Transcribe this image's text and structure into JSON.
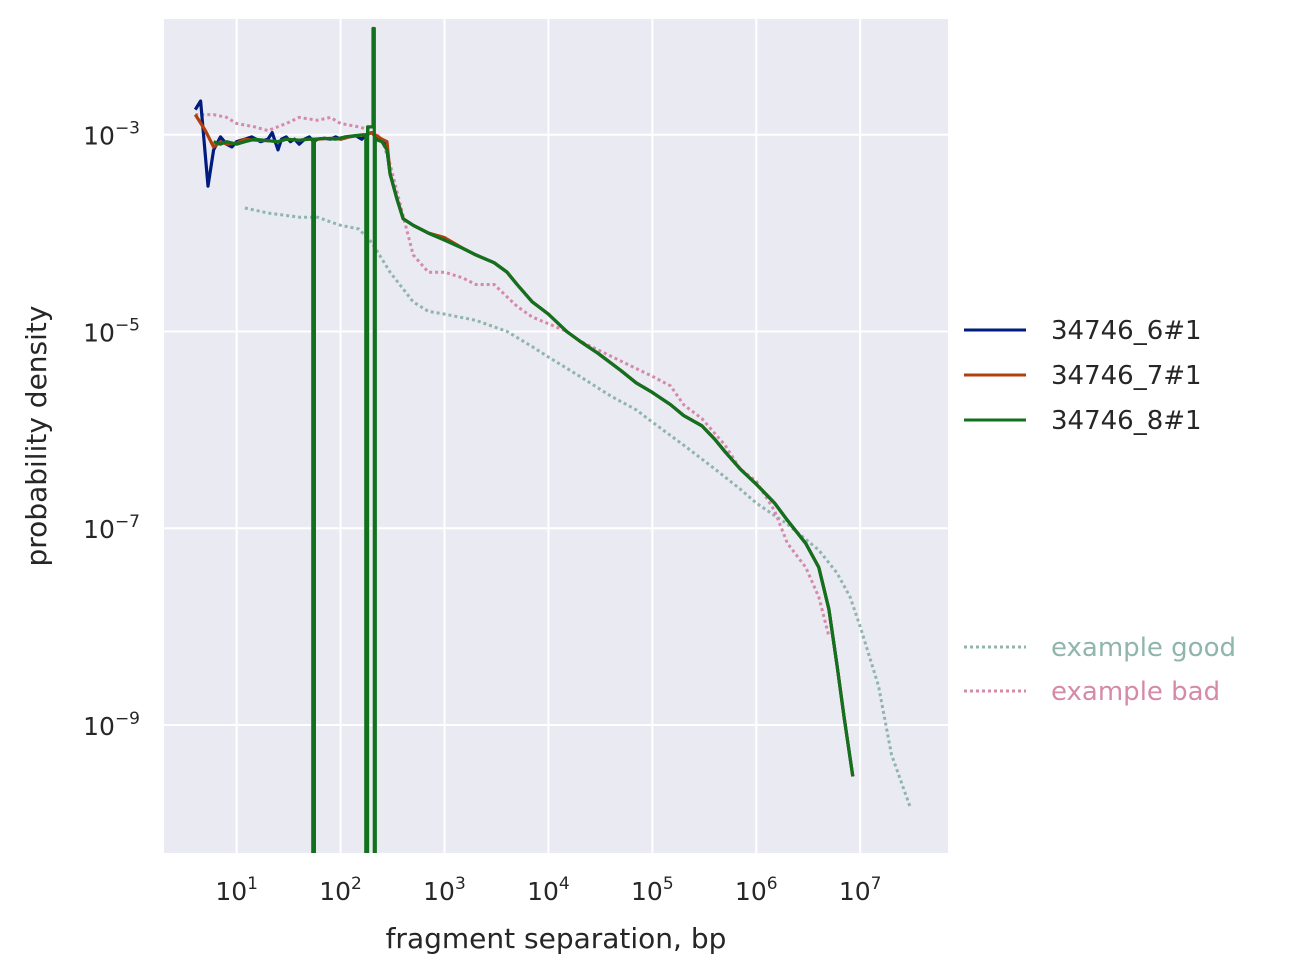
{
  "chart_data": {
    "type": "line",
    "xscale": "log",
    "yscale": "log",
    "xlabel": "fragment separation, bp",
    "ylabel": "probability density",
    "xlim": [
      2,
      70000000
    ],
    "ylim": [
      5e-11,
      0.015
    ],
    "xticks": [
      {
        "base": "10",
        "exp": "1",
        "value": 10
      },
      {
        "base": "10",
        "exp": "2",
        "value": 100
      },
      {
        "base": "10",
        "exp": "3",
        "value": 1000
      },
      {
        "base": "10",
        "exp": "4",
        "value": 10000
      },
      {
        "base": "10",
        "exp": "5",
        "value": 100000
      },
      {
        "base": "10",
        "exp": "6",
        "value": 1000000
      },
      {
        "base": "10",
        "exp": "7",
        "value": 10000000
      }
    ],
    "yticks": [
      {
        "base": "10",
        "exp": "−3",
        "value": 0.001
      },
      {
        "base": "10",
        "exp": "−5",
        "value": 1e-05
      },
      {
        "base": "10",
        "exp": "−7",
        "value": 1e-07
      },
      {
        "base": "10",
        "exp": "−9",
        "value": 1e-09
      }
    ],
    "grid": true,
    "background": "#eaeaf2",
    "legend_placement": "right",
    "series": [
      {
        "name": "34746_6#1",
        "color": "#001c7f",
        "style": "solid",
        "points": [
          [
            4,
            0.0018
          ],
          [
            4.5,
            0.0022
          ],
          [
            5.3,
            0.0003
          ],
          [
            6,
            0.0007
          ],
          [
            7,
            0.00095
          ],
          [
            8,
            0.0008
          ],
          [
            9,
            0.00075
          ],
          [
            10,
            0.00085
          ],
          [
            12,
            0.0009
          ],
          [
            14,
            0.00095
          ],
          [
            17,
            0.00085
          ],
          [
            20,
            0.0009
          ],
          [
            22,
            0.00105
          ],
          [
            25,
            0.0007
          ],
          [
            27,
            0.0009
          ],
          [
            30,
            0.00095
          ],
          [
            33,
            0.00085
          ],
          [
            36,
            0.0009
          ],
          [
            40,
            0.0008
          ],
          [
            45,
            0.0009
          ],
          [
            50,
            0.00095
          ],
          [
            55,
            0.00085
          ],
          [
            60,
            0.0009
          ],
          [
            70,
            0.00092
          ],
          [
            80,
            0.0009
          ],
          [
            90,
            0.00095
          ],
          [
            100,
            0.0009
          ],
          [
            120,
            0.00095
          ],
          [
            140,
            0.00098
          ],
          [
            160,
            0.0009
          ],
          [
            180,
            0.00102
          ],
          [
            200,
            0.00105
          ],
          [
            230,
            0.0009
          ],
          [
            260,
            0.00085
          ],
          [
            280,
            0.0007
          ],
          [
            300,
            0.0004
          ],
          [
            350,
            0.00022
          ],
          [
            400,
            0.00014
          ],
          [
            500,
            0.00012
          ],
          [
            700,
            0.0001
          ],
          [
            1000,
            8.5e-05
          ],
          [
            1500,
            7e-05
          ],
          [
            2000,
            6e-05
          ],
          [
            3000,
            5e-05
          ],
          [
            4000,
            4e-05
          ],
          [
            5000,
            3e-05
          ],
          [
            7000,
            2e-05
          ],
          [
            10000,
            1.5e-05
          ],
          [
            15000,
            1e-05
          ],
          [
            20000,
            8e-06
          ],
          [
            30000,
            6e-06
          ],
          [
            50000,
            4e-06
          ],
          [
            70000,
            3e-06
          ],
          [
            100000,
            2.4e-06
          ],
          [
            150000,
            1.8e-06
          ],
          [
            200000,
            1.4e-06
          ],
          [
            300000,
            1.1e-06
          ],
          [
            400000,
            8e-07
          ],
          [
            500000,
            6e-07
          ],
          [
            700000,
            4e-07
          ],
          [
            1000000,
            2.8e-07
          ],
          [
            1500000,
            1.8e-07
          ],
          [
            2000000,
            1.2e-07
          ],
          [
            3000000,
            7e-08
          ],
          [
            4000000,
            4e-08
          ],
          [
            5000000,
            1.5e-08
          ],
          [
            6000000,
            4e-09
          ],
          [
            7000000,
            1.2e-09
          ],
          [
            8500000,
            3e-10
          ]
        ]
      },
      {
        "name": "34746_7#1",
        "color": "#b1400d",
        "style": "solid",
        "points": [
          [
            4,
            0.0016
          ],
          [
            5,
            0.0011
          ],
          [
            6,
            0.00075
          ],
          [
            7,
            0.00085
          ],
          [
            8,
            0.0008
          ],
          [
            10,
            0.00082
          ],
          [
            12,
            0.0009
          ],
          [
            15,
            0.00088
          ],
          [
            20,
            0.00087
          ],
          [
            25,
            0.00085
          ],
          [
            30,
            0.0009
          ],
          [
            40,
            0.00088
          ],
          [
            50,
            0.0009
          ],
          [
            60,
            0.0009
          ],
          [
            80,
            0.00092
          ],
          [
            100,
            0.0009
          ],
          [
            120,
            0.00095
          ],
          [
            150,
            0.00098
          ],
          [
            180,
            0.001
          ],
          [
            200,
            0.00105
          ],
          [
            250,
            0.0009
          ],
          [
            280,
            0.00085
          ],
          [
            300,
            0.0004
          ],
          [
            350,
            0.00022
          ],
          [
            400,
            0.00014
          ],
          [
            500,
            0.00012
          ],
          [
            700,
            0.0001
          ],
          [
            1000,
            9e-05
          ],
          [
            1500,
            7e-05
          ],
          [
            2000,
            6e-05
          ],
          [
            3000,
            5e-05
          ],
          [
            4000,
            4e-05
          ],
          [
            5000,
            3e-05
          ],
          [
            7000,
            2e-05
          ],
          [
            10000,
            1.5e-05
          ],
          [
            15000,
            1e-05
          ],
          [
            20000,
            8e-06
          ],
          [
            30000,
            6e-06
          ],
          [
            50000,
            4e-06
          ],
          [
            70000,
            3e-06
          ],
          [
            100000,
            2.4e-06
          ],
          [
            150000,
            1.8e-06
          ],
          [
            200000,
            1.4e-06
          ],
          [
            300000,
            1.1e-06
          ],
          [
            400000,
            8e-07
          ],
          [
            500000,
            6e-07
          ],
          [
            700000,
            4e-07
          ],
          [
            1000000,
            2.8e-07
          ],
          [
            1500000,
            1.8e-07
          ],
          [
            2000000,
            1.2e-07
          ],
          [
            3000000,
            7e-08
          ],
          [
            4000000,
            4e-08
          ],
          [
            5000000,
            1.5e-08
          ],
          [
            6000000,
            4e-09
          ],
          [
            7000000,
            1.2e-09
          ],
          [
            8500000,
            3e-10
          ]
        ]
      },
      {
        "name": "34746_8#1",
        "color": "#12711c",
        "style": "solid",
        "points": [
          [
            6,
            0.00085
          ],
          [
            7,
            0.0008
          ],
          [
            8,
            0.00085
          ],
          [
            10,
            0.0008
          ],
          [
            12,
            0.00085
          ],
          [
            15,
            0.0009
          ],
          [
            20,
            0.00087
          ],
          [
            25,
            0.00085
          ],
          [
            30,
            0.0009
          ],
          [
            40,
            0.00088
          ],
          [
            50,
            0.0009
          ],
          [
            54,
            0.0009
          ],
          [
            54,
            4e-11
          ],
          [
            56,
            4e-11
          ],
          [
            56,
            0.0009
          ],
          [
            70,
            0.00092
          ],
          [
            90,
            0.0009
          ],
          [
            110,
            0.00095
          ],
          [
            140,
            0.00098
          ],
          [
            165,
            0.001
          ],
          [
            175,
            0.001
          ],
          [
            175,
            4e-11
          ],
          [
            182,
            4e-11
          ],
          [
            182,
            0.0012
          ],
          [
            205,
            0.0012
          ],
          [
            205,
            0.012
          ],
          [
            211,
            0.012
          ],
          [
            211,
            4e-11
          ],
          [
            216,
            4e-11
          ],
          [
            216,
            0.0009
          ],
          [
            250,
            0.00085
          ],
          [
            280,
            0.0007
          ],
          [
            300,
            0.0004
          ],
          [
            350,
            0.00022
          ],
          [
            400,
            0.00014
          ],
          [
            500,
            0.00012
          ],
          [
            700,
            0.0001
          ],
          [
            1000,
            8.5e-05
          ],
          [
            1500,
            7e-05
          ],
          [
            2000,
            6e-05
          ],
          [
            3000,
            5e-05
          ],
          [
            4000,
            4e-05
          ],
          [
            5000,
            3e-05
          ],
          [
            7000,
            2e-05
          ],
          [
            10000,
            1.5e-05
          ],
          [
            15000,
            1e-05
          ],
          [
            20000,
            8e-06
          ],
          [
            30000,
            6e-06
          ],
          [
            50000,
            4e-06
          ],
          [
            70000,
            3e-06
          ],
          [
            100000,
            2.4e-06
          ],
          [
            150000,
            1.8e-06
          ],
          [
            200000,
            1.4e-06
          ],
          [
            300000,
            1.1e-06
          ],
          [
            400000,
            8e-07
          ],
          [
            500000,
            6e-07
          ],
          [
            700000,
            4e-07
          ],
          [
            1000000,
            2.8e-07
          ],
          [
            1500000,
            1.8e-07
          ],
          [
            2000000,
            1.2e-07
          ],
          [
            3000000,
            7e-08
          ],
          [
            4000000,
            4e-08
          ],
          [
            5000000,
            1.5e-08
          ],
          [
            6000000,
            4e-09
          ],
          [
            7000000,
            1.2e-09
          ],
          [
            8500000,
            3e-10
          ]
        ]
      },
      {
        "name": "example good",
        "color": "#8fb5ac",
        "style": "dotted",
        "points": [
          [
            12,
            0.00018
          ],
          [
            20,
            0.00016
          ],
          [
            40,
            0.000145
          ],
          [
            60,
            0.000145
          ],
          [
            80,
            0.00013
          ],
          [
            100,
            0.00012
          ],
          [
            150,
            0.00011
          ],
          [
            200,
            8e-05
          ],
          [
            300,
            4e-05
          ],
          [
            500,
            2e-05
          ],
          [
            700,
            1.6e-05
          ],
          [
            1000,
            1.5e-05
          ],
          [
            2000,
            1.3e-05
          ],
          [
            4000,
            1e-05
          ],
          [
            7000,
            7e-06
          ],
          [
            10000,
            5.5e-06
          ],
          [
            20000,
            3.5e-06
          ],
          [
            40000,
            2.2e-06
          ],
          [
            70000,
            1.6e-06
          ],
          [
            100000,
            1.2e-06
          ],
          [
            200000,
            7e-07
          ],
          [
            400000,
            4e-07
          ],
          [
            700000,
            2.5e-07
          ],
          [
            1000000,
            1.8e-07
          ],
          [
            2000000,
            1.1e-07
          ],
          [
            4000000,
            6e-08
          ],
          [
            6000000,
            3.5e-08
          ],
          [
            8000000,
            2e-08
          ],
          [
            10000000,
            1e-08
          ],
          [
            15000000,
            2.5e-09
          ],
          [
            20000000,
            5e-10
          ],
          [
            30000000,
            1.5e-10
          ]
        ]
      },
      {
        "name": "example bad",
        "color": "#d58aa8",
        "style": "dotted",
        "points": [
          [
            4,
            0.0016
          ],
          [
            6,
            0.0016
          ],
          [
            8,
            0.0015
          ],
          [
            10,
            0.0013
          ],
          [
            15,
            0.0012
          ],
          [
            20,
            0.0011
          ],
          [
            30,
            0.0013
          ],
          [
            40,
            0.0015
          ],
          [
            60,
            0.0014
          ],
          [
            80,
            0.0015
          ],
          [
            100,
            0.0013
          ],
          [
            150,
            0.0012
          ],
          [
            200,
            0.0011
          ],
          [
            250,
            0.0009
          ],
          [
            300,
            0.0005
          ],
          [
            400,
            0.00015
          ],
          [
            500,
            6e-05
          ],
          [
            700,
            4e-05
          ],
          [
            1000,
            4e-05
          ],
          [
            1500,
            3.5e-05
          ],
          [
            2000,
            3e-05
          ],
          [
            3000,
            3e-05
          ],
          [
            5000,
            1.8e-05
          ],
          [
            7000,
            1.4e-05
          ],
          [
            10000,
            1.2e-05
          ],
          [
            15000,
            1e-05
          ],
          [
            20000,
            8e-06
          ],
          [
            30000,
            6.5e-06
          ],
          [
            50000,
            5e-06
          ],
          [
            70000,
            4.2e-06
          ],
          [
            100000,
            3.5e-06
          ],
          [
            150000,
            2.8e-06
          ],
          [
            200000,
            1.8e-06
          ],
          [
            300000,
            1.3e-06
          ],
          [
            500000,
            7e-07
          ],
          [
            700000,
            4e-07
          ],
          [
            1000000,
            3e-07
          ],
          [
            1500000,
            1.5e-07
          ],
          [
            2000000,
            7e-08
          ],
          [
            3000000,
            4e-08
          ],
          [
            4000000,
            2e-08
          ],
          [
            5000000,
            8e-09
          ]
        ]
      }
    ]
  },
  "legend": {
    "items": [
      {
        "label": "34746_6#1",
        "color": "#001c7f",
        "style": "solid"
      },
      {
        "label": "34746_7#1",
        "color": "#b1400d",
        "style": "solid"
      },
      {
        "label": "34746_8#1",
        "color": "#12711c",
        "style": "solid"
      },
      {
        "label": "example good",
        "color": "#8fb5ac",
        "style": "dotted"
      },
      {
        "label": "example bad",
        "color": "#d58aa8",
        "style": "dotted"
      }
    ]
  }
}
